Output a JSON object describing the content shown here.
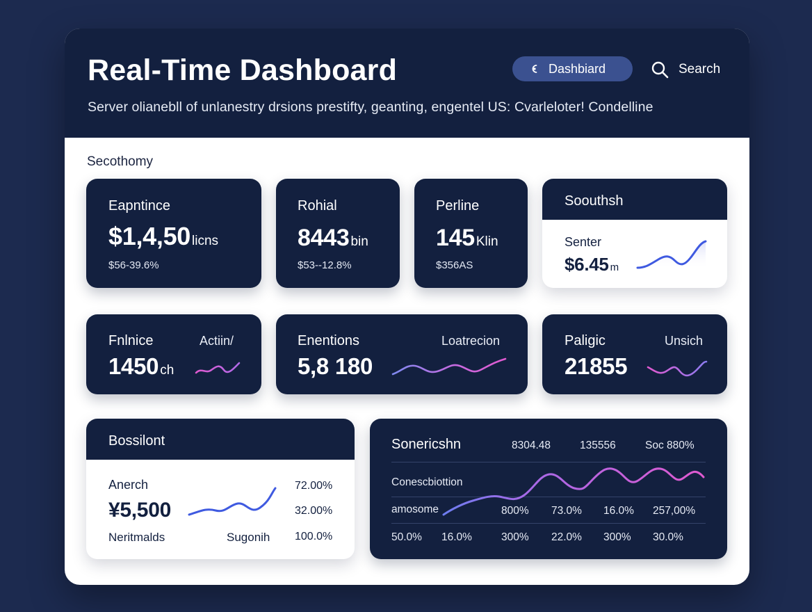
{
  "header": {
    "title": "Real-Time Dashboard",
    "subtitle": "Server olianebll of unlanestry drsions prestifty, geanting,   engentel US:   Cvarleloter! Condelline",
    "nav_pill_label": "Dashbiard",
    "search_label": "Search"
  },
  "section_label": "Secothomy",
  "cards": {
    "c1": {
      "label": "Eapntince",
      "value": "$1,4,50",
      "unit": "licns",
      "sub": "$56-39.6%"
    },
    "c2": {
      "label": "Rohial",
      "value": "8443",
      "unit": "bin",
      "sub": "$53--12.8%"
    },
    "c3": {
      "label": "Perline",
      "value": "145",
      "unit": "Klin",
      "sub": "$356AS"
    },
    "c4": {
      "label": "Soouthsh",
      "inner_label": "Senter",
      "value": "$6.45",
      "unit": "m"
    },
    "c5": {
      "label": "Fnlnice",
      "right": "Actiin/",
      "value": "1450",
      "unit": "ch"
    },
    "c6": {
      "label": "Enentions",
      "right": "Loatrecion",
      "value": "5,8 180"
    },
    "c7": {
      "label": "Paligic",
      "right": "Unsich",
      "value": "21855"
    },
    "c8": {
      "label": "Bossilont",
      "inner_label": "Anerch",
      "value": "¥5,500",
      "footer_left": "Neritmalds",
      "footer_mid": "Sugonih",
      "stats": [
        "72.00%",
        "32.00%",
        "100.0%"
      ]
    },
    "c9": {
      "label": "Sonericshn",
      "headers": [
        "8304.48",
        "135556",
        "Soc 880%"
      ],
      "row1_label": "Conescbiottion",
      "row2_label": "amosome",
      "row2_values": [
        "800%",
        "73.0%",
        "16.0%",
        "257,00%"
      ],
      "row3_values": [
        "50.0%",
        "16.0%",
        "300%",
        "22.0%",
        "300%",
        "30.0%"
      ]
    }
  },
  "icons": {
    "nav": "dashboard-icon",
    "search": "search-icon"
  },
  "colors": {
    "background": "#1c2a4f",
    "header": "#13203f",
    "card_dark": "#13203f",
    "pill": "#3b5190",
    "spark_blue": "#3f5ae0",
    "spark_pink": "#e05ad0",
    "spark_purple": "#8c6cf0"
  }
}
